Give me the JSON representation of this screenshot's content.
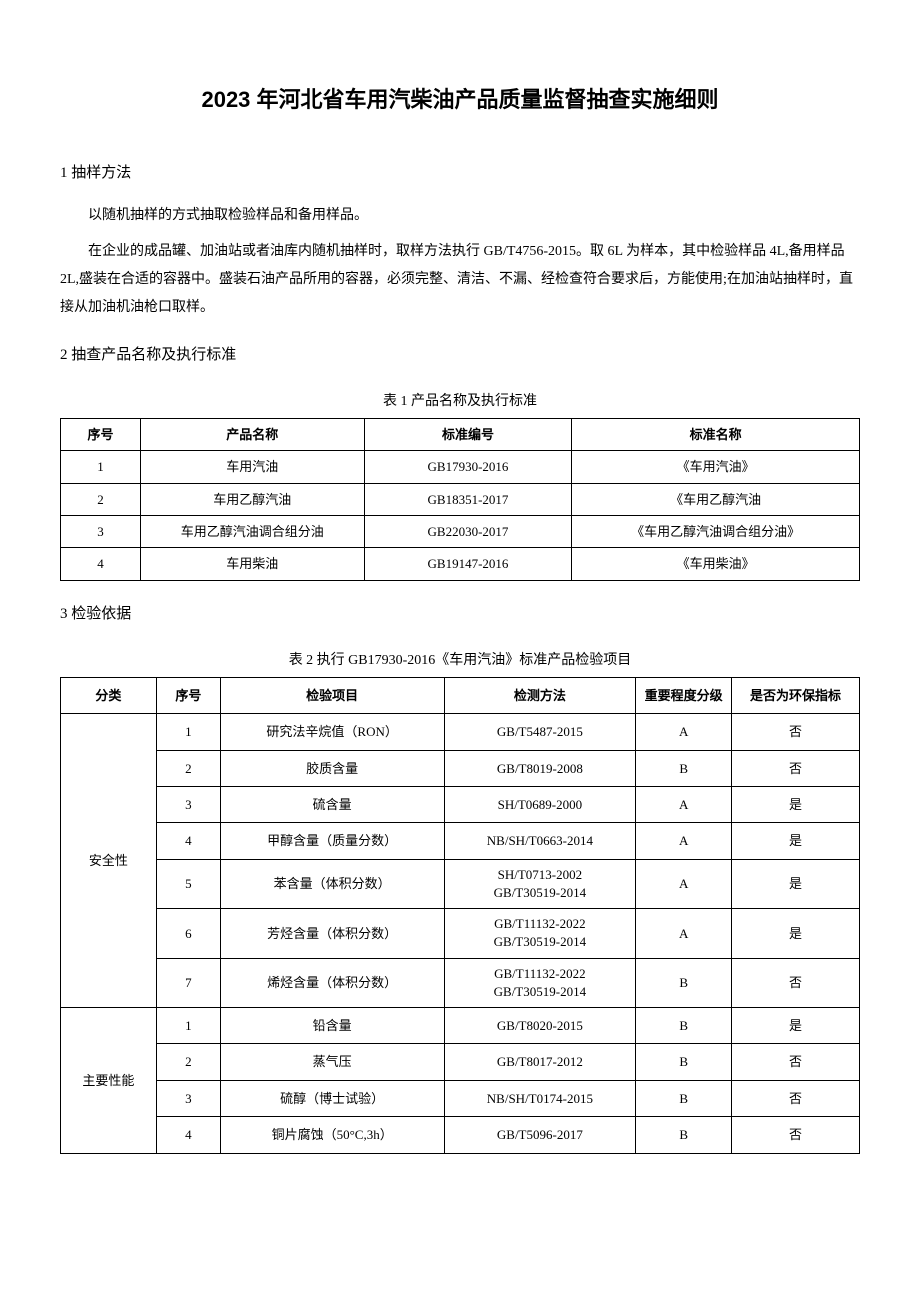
{
  "title": "2023 年河北省车用汽柴油产品质量监督抽查实施细则",
  "section1": {
    "heading": "1 抽样方法",
    "para1": "以随机抽样的方式抽取检验样品和备用样品。",
    "para2": "在企业的成品罐、加油站或者油库内随机抽样时，取样方法执行 GB/T4756-2015。取 6L 为样本，其中检验样品 4L,备用样品 2L,盛装在合适的容器中。盛装石油产品所用的容器，必须完整、清洁、不漏、经检查符合要求后，方能使用;在加油站抽样时，直接从加油机油枪口取样。"
  },
  "section2": {
    "heading": "2 抽查产品名称及执行标准"
  },
  "table1": {
    "caption": "表 1 产品名称及执行标准",
    "headers": [
      "序号",
      "产品名称",
      "标准编号",
      "标准名称"
    ],
    "rows": [
      [
        "1",
        "车用汽油",
        "GB17930-2016",
        "《车用汽油》"
      ],
      [
        "2",
        "车用乙醇汽油",
        "GB18351-2017",
        "《车用乙醇汽油"
      ],
      [
        "3",
        "车用乙醇汽油调合组分油",
        "GB22030-2017",
        "《车用乙醇汽油调合组分油》"
      ],
      [
        "4",
        "车用柴油",
        "GB19147-2016",
        "《车用柴油》"
      ]
    ]
  },
  "section3": {
    "heading": "3 检验依据"
  },
  "table2": {
    "caption": "表 2 执行 GB17930-2016《车用汽油》标准产品检验项目",
    "headers": [
      "分类",
      "序号",
      "检验项目",
      "检测方法",
      "重要程度分级",
      "是否为环保指标"
    ],
    "group1": {
      "category": "安全性",
      "rows": [
        {
          "seq": "1",
          "item": "研究法辛烷值（RON）",
          "method": "GB/T5487-2015",
          "grade": "A",
          "env": "否"
        },
        {
          "seq": "2",
          "item": "胶质含量",
          "method": "GB/T8019-2008",
          "grade": "B",
          "env": "否"
        },
        {
          "seq": "3",
          "item": "硫含量",
          "method": "SH/T0689-2000",
          "grade": "A",
          "env": "是"
        },
        {
          "seq": "4",
          "item": "甲醇含量（质量分数）",
          "method": "NB/SH/T0663-2014",
          "grade": "A",
          "env": "是"
        },
        {
          "seq": "5",
          "item": "苯含量（体积分数）",
          "method": "SH/T0713-2002\nGB/T30519-2014",
          "grade": "A",
          "env": "是"
        },
        {
          "seq": "6",
          "item": "芳烃含量（体积分数）",
          "method": "GB/T11132-2022\nGB/T30519-2014",
          "grade": "A",
          "env": "是"
        },
        {
          "seq": "7",
          "item": "烯烃含量（体积分数）",
          "method": "GB/T11132-2022\nGB/T30519-2014",
          "grade": "B",
          "env": "否"
        }
      ]
    },
    "group2": {
      "category": "主要性能",
      "rows": [
        {
          "seq": "1",
          "item": "铅含量",
          "method": "GB/T8020-2015",
          "grade": "B",
          "env": "是"
        },
        {
          "seq": "2",
          "item": "蒸气压",
          "method": "GB/T8017-2012",
          "grade": "B",
          "env": "否"
        },
        {
          "seq": "3",
          "item": "硫醇（博士试验）",
          "method": "NB/SH/T0174-2015",
          "grade": "B",
          "env": "否"
        },
        {
          "seq": "4",
          "item": "铜片腐蚀（50°C,3h）",
          "method": "GB/T5096-2017",
          "grade": "B",
          "env": "否"
        }
      ]
    }
  }
}
